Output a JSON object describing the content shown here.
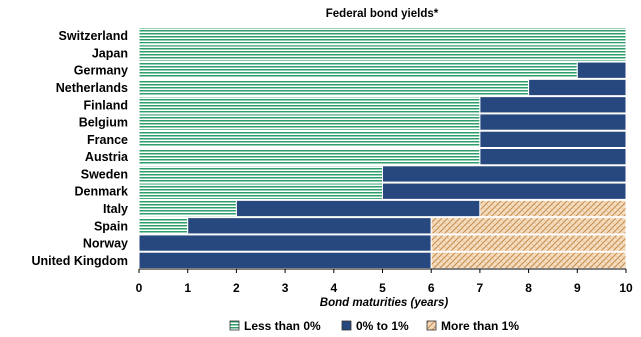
{
  "chart_data": {
    "type": "bar",
    "orientation": "horizontal",
    "stacked": true,
    "title": "Federal bond yields*",
    "xlabel": "Bond maturities (years)",
    "ylabel": "",
    "xlim": [
      0,
      10
    ],
    "xticks": [
      "0",
      "1",
      "2",
      "3",
      "4",
      "5",
      "6",
      "7",
      "8",
      "9",
      "10"
    ],
    "categories": [
      "Switzerland",
      "Japan",
      "Germany",
      "Netherlands",
      "Finland",
      "Belgium",
      "France",
      "Austria",
      "Sweden",
      "Denmark",
      "Italy",
      "Spain",
      "Norway",
      "United Kingdom"
    ],
    "series": [
      {
        "name": "Less than 0%",
        "color": "#2e9e6b",
        "pattern": "horizontal-lines",
        "values": [
          10,
          10,
          9,
          8,
          7,
          7,
          7,
          7,
          5,
          5,
          2,
          1,
          0,
          0
        ]
      },
      {
        "name": "0% to 1%",
        "color": "#27477f",
        "pattern": "solid",
        "values": [
          0,
          0,
          1,
          2,
          3,
          3,
          3,
          3,
          5,
          5,
          5,
          5,
          6,
          6
        ]
      },
      {
        "name": "More than 1%",
        "color": "#d4a373",
        "pattern": "crosshatch",
        "values": [
          0,
          0,
          0,
          0,
          0,
          0,
          0,
          0,
          0,
          0,
          3,
          4,
          4,
          4
        ]
      }
    ],
    "legend_position": "bottom",
    "grid": false
  }
}
